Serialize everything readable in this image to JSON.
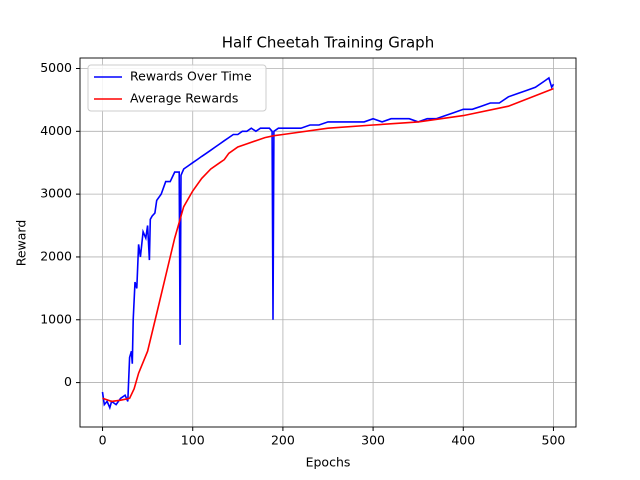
{
  "chart_data": {
    "type": "line",
    "title": "Half Cheetah Training Graph",
    "x_label": "Epochs",
    "y_label": "Reward",
    "xlim": [
      -25,
      525
    ],
    "ylim": [
      -707,
      5167
    ],
    "xticks": [
      0,
      100,
      200,
      300,
      400,
      500
    ],
    "yticks": [
      0,
      1000,
      2000,
      3000,
      4000,
      5000
    ],
    "grid": true,
    "legend_position": "upper-left",
    "series": [
      {
        "name": "Rewards Over Time",
        "color": "#0000ff",
        "x": [
          0,
          2,
          5,
          8,
          10,
          15,
          20,
          25,
          28,
          30,
          32,
          33,
          34,
          36,
          38,
          40,
          42,
          45,
          48,
          50,
          52,
          53,
          55,
          58,
          60,
          65,
          70,
          75,
          80,
          85,
          86,
          87,
          90,
          95,
          100,
          105,
          110,
          115,
          120,
          125,
          130,
          135,
          140,
          145,
          150,
          155,
          160,
          165,
          170,
          175,
          180,
          185,
          188,
          189,
          190,
          195,
          200,
          210,
          220,
          230,
          240,
          250,
          260,
          270,
          280,
          290,
          300,
          310,
          320,
          330,
          340,
          350,
          360,
          370,
          380,
          390,
          400,
          410,
          420,
          430,
          440,
          450,
          460,
          470,
          480,
          490,
          495,
          498,
          500
        ],
        "values": [
          -150,
          -350,
          -300,
          -400,
          -300,
          -350,
          -250,
          -200,
          -300,
          400,
          500,
          300,
          1000,
          1600,
          1500,
          2200,
          2000,
          2400,
          2300,
          2500,
          1950,
          2600,
          2650,
          2700,
          2900,
          3000,
          3200,
          3200,
          3350,
          3350,
          600,
          3300,
          3400,
          3450,
          3500,
          3550,
          3600,
          3650,
          3700,
          3750,
          3800,
          3850,
          3900,
          3950,
          3950,
          4000,
          4000,
          4050,
          4000,
          4050,
          4050,
          4050,
          4000,
          1000,
          4000,
          4050,
          4050,
          4050,
          4050,
          4100,
          4100,
          4150,
          4150,
          4150,
          4150,
          4150,
          4200,
          4150,
          4200,
          4200,
          4200,
          4150,
          4200,
          4200,
          4250,
          4300,
          4350,
          4350,
          4400,
          4450,
          4450,
          4550,
          4600,
          4650,
          4700,
          4800,
          4850,
          4700,
          4750
        ]
      },
      {
        "name": "Average Rewards",
        "color": "#ff0000",
        "x": [
          0,
          10,
          20,
          30,
          35,
          40,
          50,
          60,
          70,
          80,
          90,
          100,
          110,
          120,
          130,
          135,
          140,
          150,
          160,
          170,
          180,
          190,
          200,
          250,
          300,
          350,
          400,
          450,
          500
        ],
        "values": [
          -250,
          -300,
          -280,
          -250,
          -100,
          150,
          500,
          1100,
          1700,
          2300,
          2800,
          3050,
          3250,
          3400,
          3500,
          3550,
          3650,
          3750,
          3800,
          3850,
          3900,
          3930,
          3950,
          4050,
          4100,
          4150,
          4250,
          4400,
          4680
        ]
      }
    ]
  }
}
